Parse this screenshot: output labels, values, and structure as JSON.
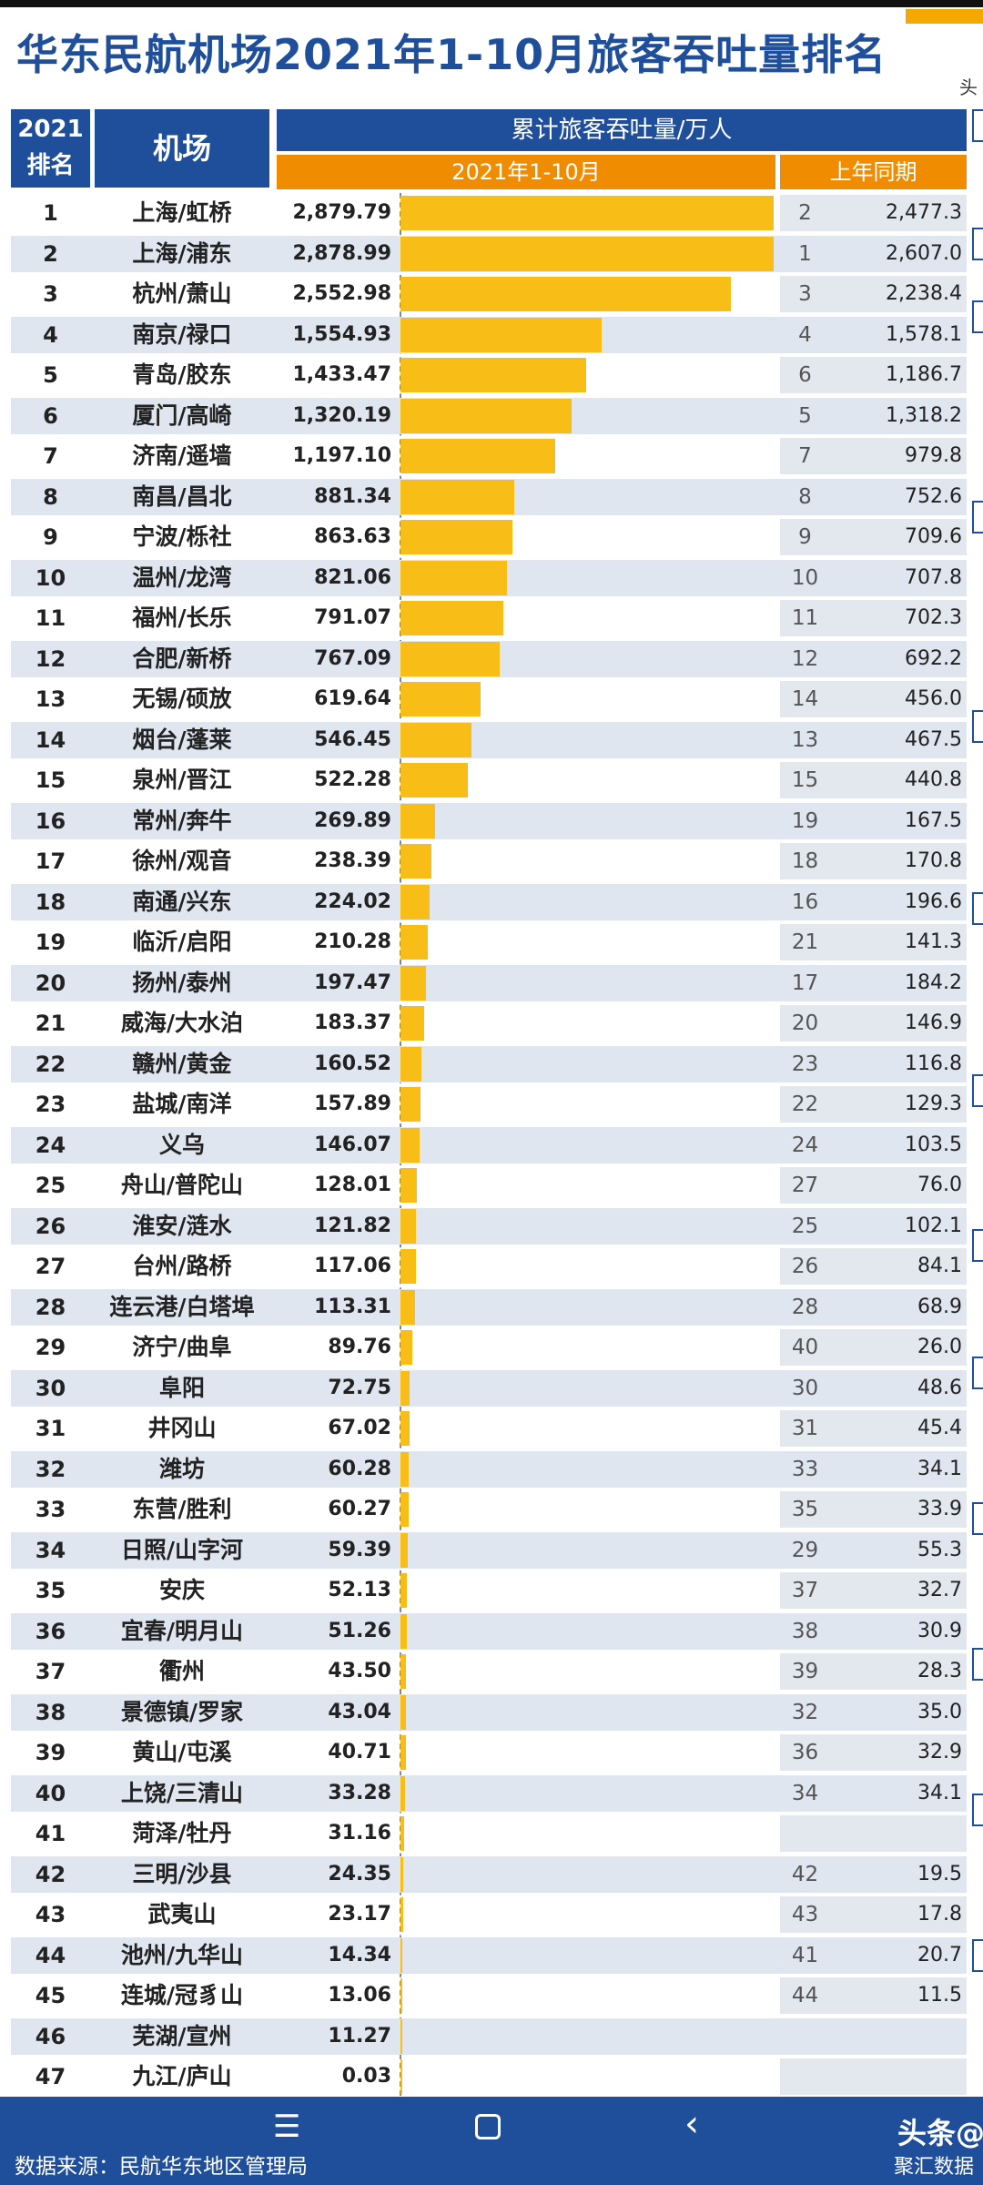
{
  "title": "华东民航机场2021年1-10月旅客吞吐量排名",
  "corner_text": "头",
  "header": {
    "rank_line1": "2021",
    "rank_line2": "排名",
    "airport": "机场",
    "cumulative": "累计旅客吞吐量/万人",
    "current_period": "2021年1-10月",
    "previous_period": "上年同期"
  },
  "colors": {
    "header_blue": "#1f4e9a",
    "header_orange": "#f08c00",
    "bar": "#f8bd16",
    "row_stripe": "#dfe6f0"
  },
  "chart_data": {
    "type": "bar",
    "title": "华东民航机场2021年1-10月旅客吞吐量排名",
    "ylabel": "累计旅客吞吐量/万人",
    "series": [
      {
        "name": "2021年1-10月",
        "values": [
          2879.79,
          2878.99,
          2552.98,
          1554.93,
          1433.47,
          1320.19,
          1197.1,
          881.34,
          863.63,
          821.06,
          791.07,
          767.09,
          619.64,
          546.45,
          522.28,
          269.89,
          238.39,
          224.02,
          210.28,
          197.47,
          183.37,
          160.52,
          157.89,
          146.07,
          128.01,
          121.82,
          117.06,
          113.31,
          89.76,
          72.75,
          67.02,
          60.28,
          60.27,
          59.39,
          52.13,
          51.26,
          43.5,
          43.04,
          40.71,
          33.28,
          31.16,
          24.35,
          23.17,
          14.34,
          13.06,
          11.27,
          0.03
        ]
      },
      {
        "name": "上年同期",
        "values": [
          2477.3,
          2607.0,
          2238.4,
          1578.1,
          1186.7,
          1318.2,
          979.8,
          752.6,
          709.6,
          707.8,
          702.3,
          692.2,
          456.0,
          467.5,
          440.8,
          167.5,
          170.8,
          196.6,
          141.3,
          184.2,
          146.9,
          116.8,
          129.3,
          103.5,
          76.0,
          102.1,
          84.1,
          68.9,
          26.0,
          48.6,
          45.4,
          34.1,
          33.9,
          55.3,
          32.7,
          30.9,
          28.3,
          35.0,
          32.9,
          34.1,
          null,
          19.5,
          17.8,
          20.7,
          11.5,
          null,
          null
        ]
      }
    ],
    "max": 2879.79,
    "rows": [
      {
        "rank": "1",
        "airport": "上海/虹桥",
        "value": "2,879.79",
        "prev_rank": "2",
        "prev_value": "2,477.3"
      },
      {
        "rank": "2",
        "airport": "上海/浦东",
        "value": "2,878.99",
        "prev_rank": "1",
        "prev_value": "2,607.0"
      },
      {
        "rank": "3",
        "airport": "杭州/萧山",
        "value": "2,552.98",
        "prev_rank": "3",
        "prev_value": "2,238.4"
      },
      {
        "rank": "4",
        "airport": "南京/禄口",
        "value": "1,554.93",
        "prev_rank": "4",
        "prev_value": "1,578.1"
      },
      {
        "rank": "5",
        "airport": "青岛/胶东",
        "value": "1,433.47",
        "prev_rank": "6",
        "prev_value": "1,186.7"
      },
      {
        "rank": "6",
        "airport": "厦门/高崎",
        "value": "1,320.19",
        "prev_rank": "5",
        "prev_value": "1,318.2"
      },
      {
        "rank": "7",
        "airport": "济南/遥墙",
        "value": "1,197.10",
        "prev_rank": "7",
        "prev_value": "979.8"
      },
      {
        "rank": "8",
        "airport": "南昌/昌北",
        "value": "881.34",
        "prev_rank": "8",
        "prev_value": "752.6"
      },
      {
        "rank": "9",
        "airport": "宁波/栎社",
        "value": "863.63",
        "prev_rank": "9",
        "prev_value": "709.6"
      },
      {
        "rank": "10",
        "airport": "温州/龙湾",
        "value": "821.06",
        "prev_rank": "10",
        "prev_value": "707.8"
      },
      {
        "rank": "11",
        "airport": "福州/长乐",
        "value": "791.07",
        "prev_rank": "11",
        "prev_value": "702.3"
      },
      {
        "rank": "12",
        "airport": "合肥/新桥",
        "value": "767.09",
        "prev_rank": "12",
        "prev_value": "692.2"
      },
      {
        "rank": "13",
        "airport": "无锡/硕放",
        "value": "619.64",
        "prev_rank": "14",
        "prev_value": "456.0"
      },
      {
        "rank": "14",
        "airport": "烟台/蓬莱",
        "value": "546.45",
        "prev_rank": "13",
        "prev_value": "467.5"
      },
      {
        "rank": "15",
        "airport": "泉州/晋江",
        "value": "522.28",
        "prev_rank": "15",
        "prev_value": "440.8"
      },
      {
        "rank": "16",
        "airport": "常州/奔牛",
        "value": "269.89",
        "prev_rank": "19",
        "prev_value": "167.5"
      },
      {
        "rank": "17",
        "airport": "徐州/观音",
        "value": "238.39",
        "prev_rank": "18",
        "prev_value": "170.8"
      },
      {
        "rank": "18",
        "airport": "南通/兴东",
        "value": "224.02",
        "prev_rank": "16",
        "prev_value": "196.6"
      },
      {
        "rank": "19",
        "airport": "临沂/启阳",
        "value": "210.28",
        "prev_rank": "21",
        "prev_value": "141.3"
      },
      {
        "rank": "20",
        "airport": "扬州/泰州",
        "value": "197.47",
        "prev_rank": "17",
        "prev_value": "184.2"
      },
      {
        "rank": "21",
        "airport": "威海/大水泊",
        "value": "183.37",
        "prev_rank": "20",
        "prev_value": "146.9"
      },
      {
        "rank": "22",
        "airport": "赣州/黄金",
        "value": "160.52",
        "prev_rank": "23",
        "prev_value": "116.8"
      },
      {
        "rank": "23",
        "airport": "盐城/南洋",
        "value": "157.89",
        "prev_rank": "22",
        "prev_value": "129.3"
      },
      {
        "rank": "24",
        "airport": "义乌",
        "value": "146.07",
        "prev_rank": "24",
        "prev_value": "103.5"
      },
      {
        "rank": "25",
        "airport": "舟山/普陀山",
        "value": "128.01",
        "prev_rank": "27",
        "prev_value": "76.0"
      },
      {
        "rank": "26",
        "airport": "淮安/涟水",
        "value": "121.82",
        "prev_rank": "25",
        "prev_value": "102.1"
      },
      {
        "rank": "27",
        "airport": "台州/路桥",
        "value": "117.06",
        "prev_rank": "26",
        "prev_value": "84.1"
      },
      {
        "rank": "28",
        "airport": "连云港/白塔埠",
        "value": "113.31",
        "prev_rank": "28",
        "prev_value": "68.9"
      },
      {
        "rank": "29",
        "airport": "济宁/曲阜",
        "value": "89.76",
        "prev_rank": "40",
        "prev_value": "26.0"
      },
      {
        "rank": "30",
        "airport": "阜阳",
        "value": "72.75",
        "prev_rank": "30",
        "prev_value": "48.6"
      },
      {
        "rank": "31",
        "airport": "井冈山",
        "value": "67.02",
        "prev_rank": "31",
        "prev_value": "45.4"
      },
      {
        "rank": "32",
        "airport": "潍坊",
        "value": "60.28",
        "prev_rank": "33",
        "prev_value": "34.1"
      },
      {
        "rank": "33",
        "airport": "东营/胜利",
        "value": "60.27",
        "prev_rank": "35",
        "prev_value": "33.9"
      },
      {
        "rank": "34",
        "airport": "日照/山字河",
        "value": "59.39",
        "prev_rank": "29",
        "prev_value": "55.3"
      },
      {
        "rank": "35",
        "airport": "安庆",
        "value": "52.13",
        "prev_rank": "37",
        "prev_value": "32.7"
      },
      {
        "rank": "36",
        "airport": "宜春/明月山",
        "value": "51.26",
        "prev_rank": "38",
        "prev_value": "30.9"
      },
      {
        "rank": "37",
        "airport": "衢州",
        "value": "43.50",
        "prev_rank": "39",
        "prev_value": "28.3"
      },
      {
        "rank": "38",
        "airport": "景德镇/罗家",
        "value": "43.04",
        "prev_rank": "32",
        "prev_value": "35.0"
      },
      {
        "rank": "39",
        "airport": "黄山/屯溪",
        "value": "40.71",
        "prev_rank": "36",
        "prev_value": "32.9"
      },
      {
        "rank": "40",
        "airport": "上饶/三清山",
        "value": "33.28",
        "prev_rank": "34",
        "prev_value": "34.1"
      },
      {
        "rank": "41",
        "airport": "菏泽/牡丹",
        "value": "31.16",
        "prev_rank": "",
        "prev_value": ""
      },
      {
        "rank": "42",
        "airport": "三明/沙县",
        "value": "24.35",
        "prev_rank": "42",
        "prev_value": "19.5"
      },
      {
        "rank": "43",
        "airport": "武夷山",
        "value": "23.17",
        "prev_rank": "43",
        "prev_value": "17.8"
      },
      {
        "rank": "44",
        "airport": "池州/九华山",
        "value": "14.34",
        "prev_rank": "41",
        "prev_value": "20.7"
      },
      {
        "rank": "45",
        "airport": "连城/冠豸山",
        "value": "13.06",
        "prev_rank": "44",
        "prev_value": "11.5"
      },
      {
        "rank": "46",
        "airport": "芜湖/宣州",
        "value": "11.27",
        "prev_rank": "",
        "prev_value": ""
      },
      {
        "rank": "47",
        "airport": "九江/庐山",
        "value": "0.03",
        "prev_rank": "",
        "prev_value": ""
      }
    ]
  },
  "footer": {
    "source": "数据来源：民航华东地区管理局",
    "brand_line1": "头条@",
    "brand_line2": "聚汇数据",
    "menu_icon": "menu-icon",
    "home_icon": "home-icon",
    "back_icon": "back-icon"
  }
}
